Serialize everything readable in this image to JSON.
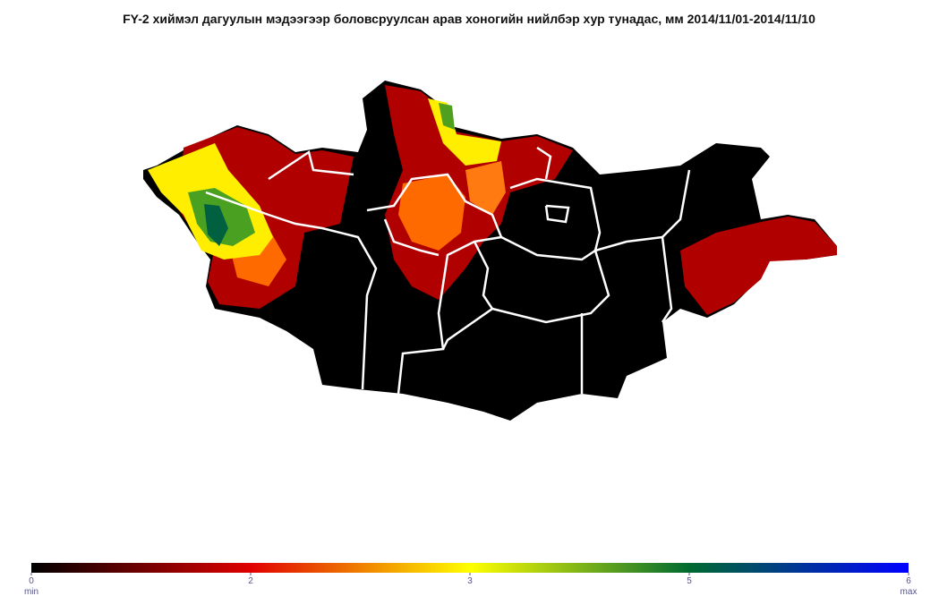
{
  "title": "FY-2  хиймэл дагуулын мэдээгээр боловсруулсан арав хоногийн нийлбэр хур тунадас, мм 2014/11/01-2014/11/10",
  "colorbar": {
    "ticks": [
      0,
      2,
      3,
      5,
      6
    ],
    "colors": [
      "#000000",
      "#e00000",
      "#ffff00",
      "#006a30",
      "#0000ff"
    ],
    "min_label": "min",
    "max_label": "max"
  }
}
